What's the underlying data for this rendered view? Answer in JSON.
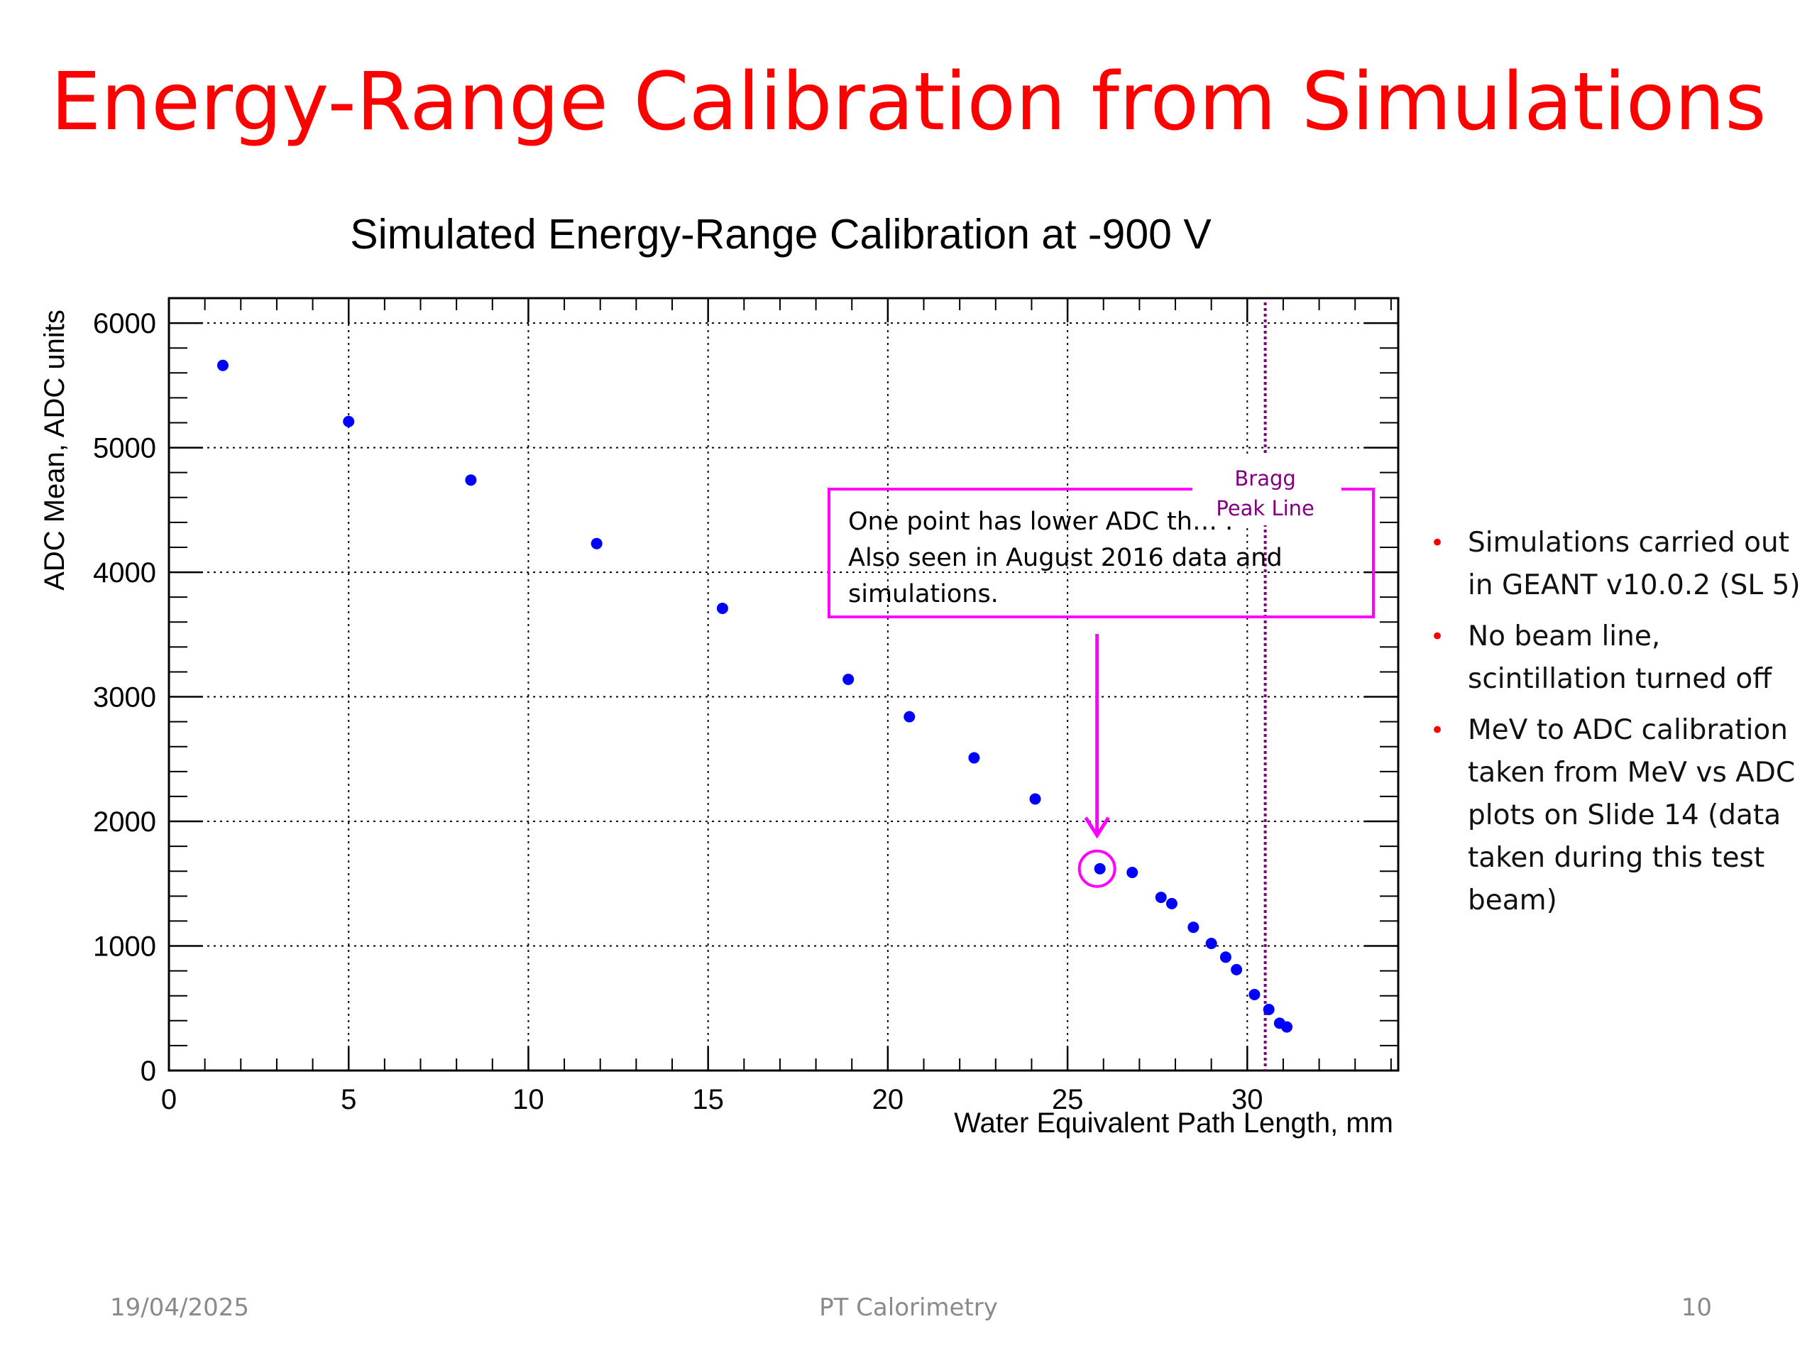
{
  "slide": {
    "title": "Energy-Range Calibration from Simulations",
    "footer_date": "19/04/2025",
    "footer_center": "PT Calorimetry",
    "page_number": "10"
  },
  "bullets": [
    "Simulations carried out in GEANT v10.0.2 (SL 5)",
    "No beam line, scintillation turned off",
    "MeV to ADC calibration taken from MeV vs ADC plots on Slide 14 (data taken during this test beam)"
  ],
  "chart_data": {
    "type": "scatter",
    "title": "Simulated Energy-Range Calibration at -900 V",
    "xlabel": "Water Equivalent Path Length, mm",
    "ylabel": "ADC Mean, ADC units",
    "xlim": [
      0,
      34.2
    ],
    "ylim": [
      0,
      6200
    ],
    "xticks": [
      0,
      5,
      10,
      15,
      20,
      25,
      30
    ],
    "yticks": [
      0,
      1000,
      2000,
      3000,
      4000,
      5000,
      6000
    ],
    "grid": true,
    "series": [
      {
        "x": [
          1.5,
          5.0,
          8.4,
          11.9,
          15.4,
          18.9,
          20.6,
          22.4,
          24.1,
          25.9,
          26.8,
          27.6,
          27.9,
          28.5,
          29.0,
          29.4,
          29.7,
          30.2,
          30.6,
          30.9,
          31.1
        ],
        "y": [
          5660,
          5210,
          4740,
          4230,
          3710,
          3140,
          2840,
          2510,
          2180,
          1620,
          1590,
          1390,
          1340,
          1150,
          1020,
          910,
          810,
          610,
          490,
          380,
          350
        ]
      }
    ],
    "colors": {
      "points": "#0000ff",
      "annotation": "#ff00ff",
      "bragg_line": "#800080"
    },
    "bragg_peak": {
      "x": 30.5,
      "label": [
        "Bragg",
        "Peak Line"
      ]
    },
    "annotation": {
      "lines": [
        "One point has lower ADC th… .",
        "Also seen in August 2016 data and",
        "simulations."
      ],
      "highlighted_point": {
        "x": 25.9,
        "y": 1620
      }
    }
  }
}
